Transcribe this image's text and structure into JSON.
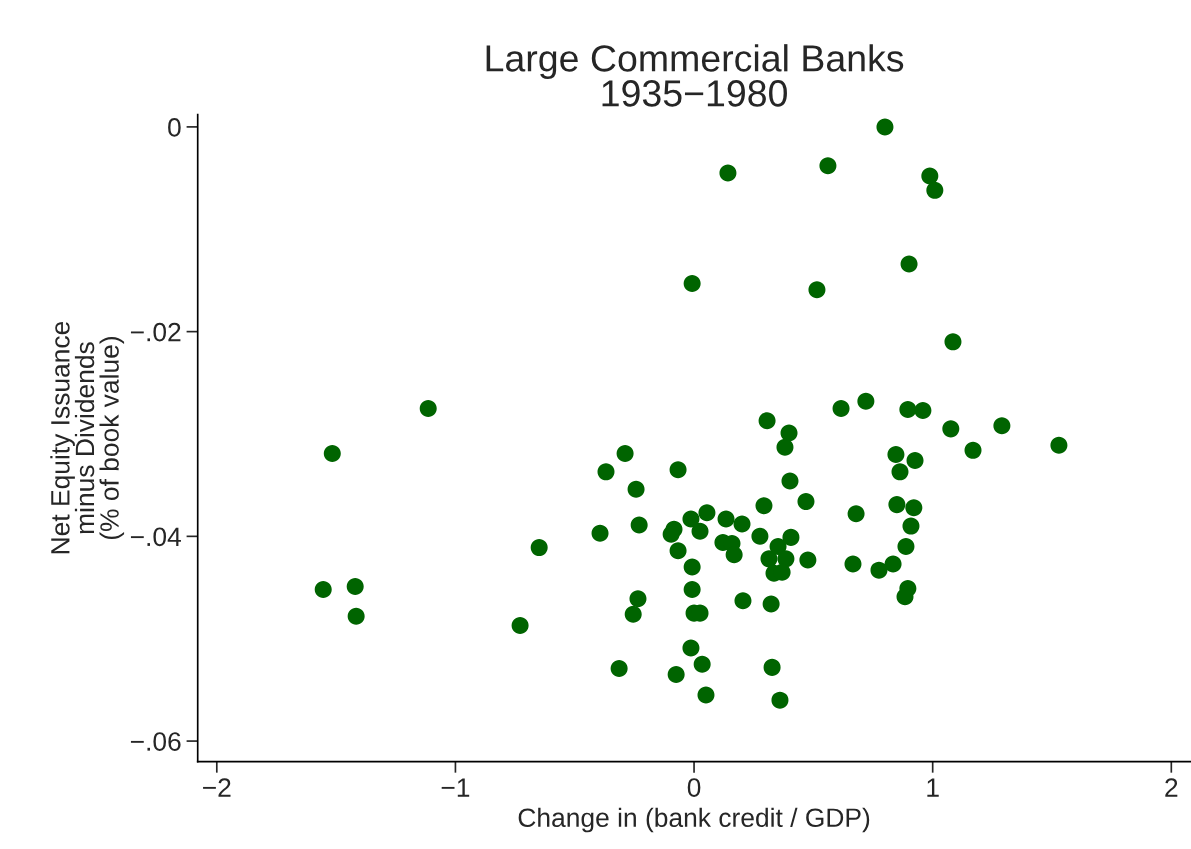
{
  "chart_data": {
    "type": "scatter",
    "title": "Large Commercial Banks\n1935−1980",
    "xlabel": "Change in (bank credit / GDP)",
    "ylabel": "Net Equity Issuance\nminus Dividends\n(% of book value)",
    "xlim": [
      -2.08,
      2.08
    ],
    "ylim": [
      -0.062,
      0.0012
    ],
    "xticks": [
      {
        "value": -2,
        "label": "−2"
      },
      {
        "value": -1,
        "label": "−1"
      },
      0,
      1,
      2
    ],
    "yticks": [
      {
        "value": -0.06,
        "label": "−.06"
      },
      {
        "value": -0.04,
        "label": "−.04"
      },
      {
        "value": -0.02,
        "label": "−.02"
      },
      0
    ],
    "grid": false,
    "marker": "circle",
    "series": [
      {
        "color": "#006400",
        "x": [
          0.8,
          0.561,
          0.142,
          0.988,
          1.009,
          0.901,
          -0.008,
          0.515,
          1.085,
          -1.114,
          -1.516,
          -1.554,
          -1.42,
          -1.416,
          -0.729,
          -0.649,
          0.306,
          0.398,
          0.381,
          -0.289,
          -0.369,
          -0.067,
          0.402,
          -0.243,
          0.293,
          0.469,
          -0.394,
          -0.23,
          -0.084,
          -0.096,
          -0.013,
          0.054,
          0.025,
          0.134,
          0.201,
          0.276,
          0.406,
          0.121,
          0.159,
          0.168,
          0.352,
          0.314,
          0.385,
          0.335,
          0.369,
          0.477,
          -0.067,
          -0.008,
          -0.008,
          -0.235,
          -0.255,
          0.0,
          0.025,
          0.205,
          0.323,
          -0.013,
          0.034,
          -0.314,
          -0.075,
          0.327,
          0.05,
          0.36,
          0.616,
          0.72,
          0.896,
          0.959,
          1.076,
          1.29,
          1.169,
          1.529,
          0.846,
          0.926,
          0.863,
          0.679,
          0.85,
          0.921,
          0.909,
          0.888,
          0.666,
          0.775,
          0.834,
          0.896,
          0.884
        ],
        "values": [
          0.0,
          -0.0038,
          -0.0045,
          -0.0048,
          -0.0062,
          -0.0134,
          -0.0153,
          -0.0159,
          -0.021,
          -0.0275,
          -0.0319,
          -0.0452,
          -0.0449,
          -0.0478,
          -0.0487,
          -0.0411,
          -0.0287,
          -0.0299,
          -0.0313,
          -0.0319,
          -0.0337,
          -0.0335,
          -0.0346,
          -0.0354,
          -0.037,
          -0.0366,
          -0.0397,
          -0.0389,
          -0.0393,
          -0.0398,
          -0.0383,
          -0.0377,
          -0.0395,
          -0.0383,
          -0.0388,
          -0.04,
          -0.0401,
          -0.0406,
          -0.0407,
          -0.0418,
          -0.041,
          -0.0422,
          -0.0422,
          -0.0436,
          -0.0435,
          -0.0423,
          -0.0414,
          -0.043,
          -0.0452,
          -0.0461,
          -0.0476,
          -0.0475,
          -0.0475,
          -0.0463,
          -0.0466,
          -0.0509,
          -0.0525,
          -0.0529,
          -0.0535,
          -0.0528,
          -0.0555,
          -0.056,
          -0.0275,
          -0.0268,
          -0.0276,
          -0.0277,
          -0.0295,
          -0.0292,
          -0.0316,
          -0.0311,
          -0.032,
          -0.0326,
          -0.0337,
          -0.0378,
          -0.0369,
          -0.0372,
          -0.039,
          -0.041,
          -0.0427,
          -0.0433,
          -0.0427,
          -0.0451,
          -0.0459
        ]
      }
    ]
  }
}
